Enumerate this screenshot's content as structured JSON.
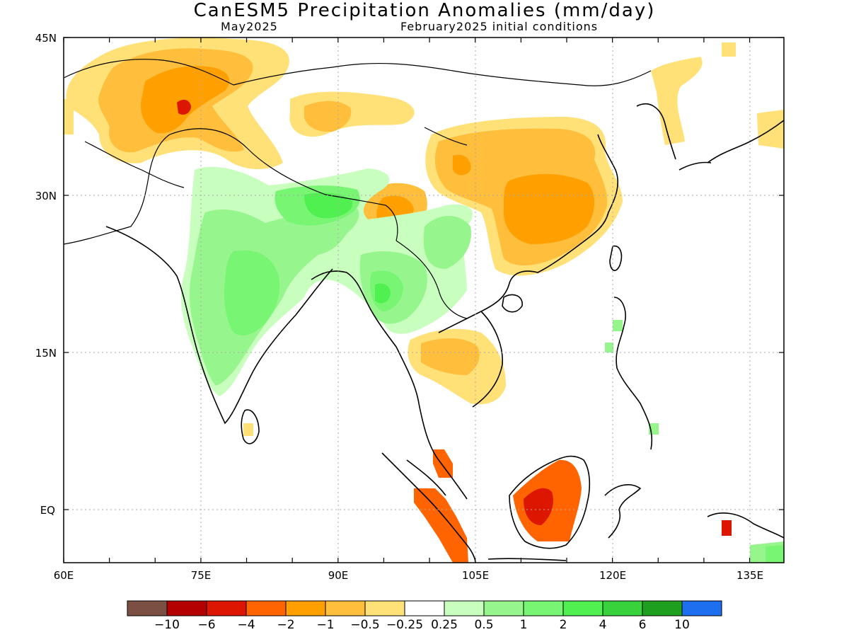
{
  "title": "CanESM5 Precipitation Anomalies (mm/day)",
  "subtitle_left": "May2025",
  "subtitle_right": "February2025 initial conditions",
  "lon_labels": [
    "60E",
    "75E",
    "90E",
    "105E",
    "120E",
    "135E"
  ],
  "lat_labels": [
    "45N",
    "30N",
    "15N",
    "EQ"
  ],
  "colorbar": {
    "colors": [
      "#7b5042",
      "#b40000",
      "#dc1600",
      "#ff6400",
      "#ffa000",
      "#ffbe3c",
      "#ffe178",
      "#ffffff",
      "#c8ffbe",
      "#96f58c",
      "#78f573",
      "#50f050",
      "#37d23c",
      "#1ea01e",
      "#1e6ef0"
    ],
    "labels": [
      "−10",
      "−6",
      "−4",
      "−2",
      "−1",
      "−0.5",
      "−0.25",
      "0.25",
      "0.5",
      "1",
      "2",
      "4",
      "6",
      "10"
    ]
  },
  "colors": {
    "dry_weak": "#ffe178",
    "dry_light": "#ffbe3c",
    "dry_mod": "#ffa000",
    "dry_strong": "#ff6400",
    "dry_heavy": "#dc1600",
    "wet_weak": "#c8ffbe",
    "wet_light": "#96f58c",
    "wet_mod": "#78f573",
    "wet_strong": "#50f050"
  }
}
